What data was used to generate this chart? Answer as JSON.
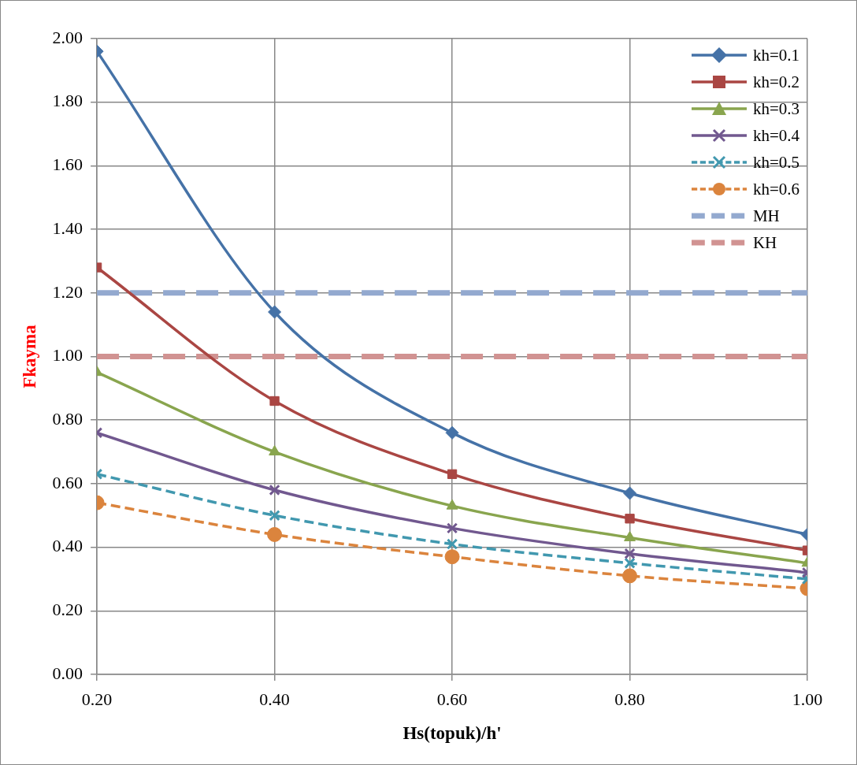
{
  "chart_data": {
    "type": "line",
    "xlabel": "Hs(topuk)/h'",
    "ylabel": "Fkayma",
    "x": [
      0.2,
      0.4,
      0.6,
      0.8,
      1.0
    ],
    "series": [
      {
        "name": "kh=0.1",
        "color": "#4572a7",
        "marker": "diamond",
        "line_style": "solid",
        "values": [
          1.96,
          1.14,
          0.76,
          0.57,
          0.44
        ]
      },
      {
        "name": "kh=0.2",
        "color": "#aa4643",
        "marker": "square",
        "line_style": "solid",
        "values": [
          1.28,
          0.86,
          0.63,
          0.49,
          0.39
        ]
      },
      {
        "name": "kh=0.3",
        "color": "#89a54e",
        "marker": "triangle",
        "line_style": "solid",
        "values": [
          0.95,
          0.7,
          0.53,
          0.43,
          0.35
        ]
      },
      {
        "name": "kh=0.4",
        "color": "#71588f",
        "marker": "cross",
        "line_style": "solid",
        "values": [
          0.76,
          0.58,
          0.46,
          0.38,
          0.32
        ]
      },
      {
        "name": "kh=0.5",
        "color": "#4198af",
        "marker": "cross",
        "line_style": "dashed",
        "values": [
          0.63,
          0.5,
          0.41,
          0.35,
          0.3
        ]
      },
      {
        "name": "kh=0.6",
        "color": "#db843d",
        "marker": "circle",
        "line_style": "dashed",
        "values": [
          0.54,
          0.44,
          0.37,
          0.31,
          0.27
        ]
      },
      {
        "name": "MH",
        "color": "#93a9cf",
        "marker": "none",
        "line_style": "dashed",
        "values": [
          1.2,
          1.2,
          1.2,
          1.2,
          1.2
        ]
      },
      {
        "name": "KH",
        "color": "#d19392",
        "marker": "none",
        "line_style": "dashed",
        "values": [
          1.0,
          1.0,
          1.0,
          1.0,
          1.0
        ]
      }
    ],
    "xlim": [
      0.2,
      1.0
    ],
    "xticks": [
      {
        "value": 0.2,
        "label": "0.20"
      },
      {
        "value": 0.4,
        "label": "0.40"
      },
      {
        "value": 0.6,
        "label": "0.60"
      },
      {
        "value": 0.8,
        "label": "0.80"
      },
      {
        "value": 1.0,
        "label": "1.00"
      }
    ],
    "ylim": [
      0,
      2
    ],
    "yticks": [
      {
        "value": 0,
        "label": "0.00"
      },
      {
        "value": 0.2,
        "label": "0.20"
      },
      {
        "value": 0.4,
        "label": "0.40"
      },
      {
        "value": 0.6,
        "label": "0.60"
      },
      {
        "value": 0.8,
        "label": "0.80"
      },
      {
        "value": 1.0,
        "label": "1.00"
      },
      {
        "value": 1.2,
        "label": "1.20"
      },
      {
        "value": 1.4,
        "label": "1.40"
      },
      {
        "value": 1.6,
        "label": "1.60"
      },
      {
        "value": 1.8,
        "label": "1.80"
      },
      {
        "value": 2.0,
        "label": "2.00"
      }
    ],
    "grid": true,
    "legend": "top right"
  }
}
